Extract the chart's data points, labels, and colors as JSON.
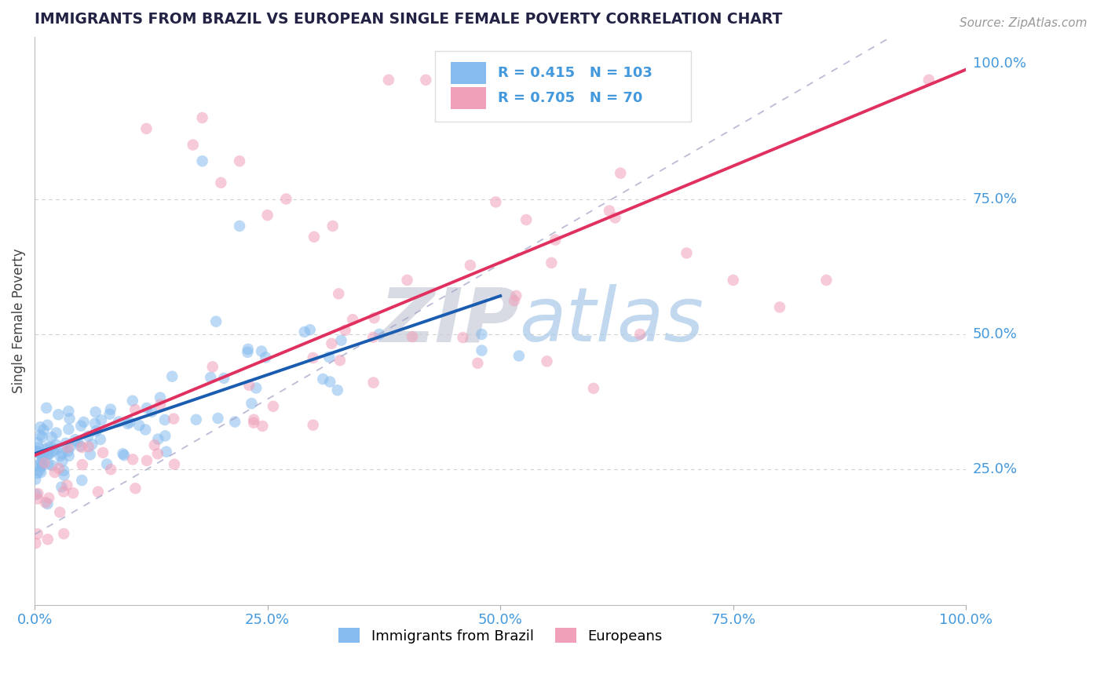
{
  "title": "IMMIGRANTS FROM BRAZIL VS EUROPEAN SINGLE FEMALE POVERTY CORRELATION CHART",
  "source": "Source: ZipAtlas.com",
  "ylabel": "Single Female Poverty",
  "x_tick_labels": [
    "0.0%",
    "25.0%",
    "50.0%",
    "75.0%",
    "100.0%"
  ],
  "xlim": [
    0.0,
    1.0
  ],
  "ylim": [
    0.0,
    1.05
  ],
  "blue_R": 0.415,
  "blue_N": 103,
  "pink_R": 0.705,
  "pink_N": 70,
  "blue_color": "#85BBEE",
  "pink_color": "#F0A0B8",
  "blue_line_color": "#1A5CB0",
  "pink_line_color": "#E03060",
  "diagonal_color": "#AAAACC",
  "legend_label_blue": "Immigrants from Brazil",
  "legend_label_pink": "Europeans",
  "title_color": "#222244",
  "axis_label_color": "#4499DD",
  "watermark_zip": "ZIP",
  "watermark_atlas": "atlas",
  "watermark_color_zip": "#C8CCD8",
  "watermark_color_atlas": "#A8C8E8",
  "blue_slope": 0.6,
  "blue_intercept": 0.27,
  "pink_slope": 0.78,
  "pink_intercept": 0.2,
  "diag_slope": 1.0,
  "diag_intercept": 0.13
}
